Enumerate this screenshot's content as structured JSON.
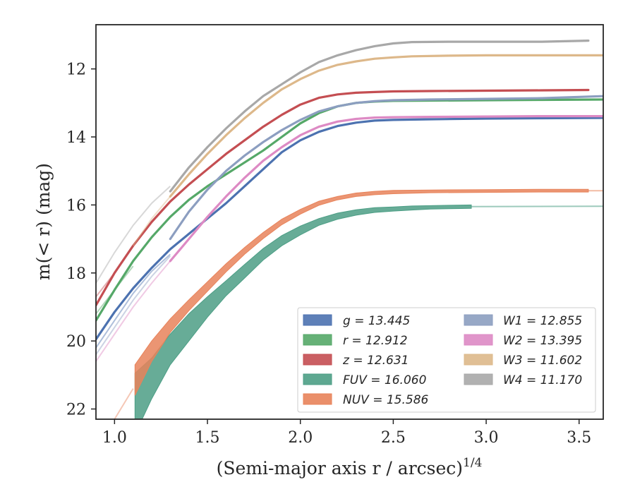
{
  "chart_data": {
    "type": "line",
    "xlabel": "(Semi-major axis r / arcsec)",
    "xlabel_exponent": "1/4",
    "ylabel": "m(< r) (mag)",
    "xlim": [
      0.9,
      3.63
    ],
    "ylim": [
      22.3,
      10.7
    ],
    "y_inverted": true,
    "xticks": [
      "1.0",
      "1.5",
      "2.0",
      "2.5",
      "3.0",
      "3.5"
    ],
    "yticks": [
      "12",
      "14",
      "16",
      "18",
      "20",
      "22"
    ],
    "grid": false,
    "legend_position": "lower-right",
    "series": [
      {
        "name": "g",
        "legend_label": "g = 13.445",
        "color": "#4c72b0",
        "faint_x": [
          0.9,
          1.0,
          1.1,
          1.2,
          1.3
        ],
        "faint_y": [
          20.2,
          19.4,
          18.6,
          17.95,
          17.45
        ],
        "x": [
          0.9,
          1.0,
          1.1,
          1.2,
          1.3,
          1.4,
          1.5,
          1.6,
          1.7,
          1.8,
          1.9,
          2.0,
          2.1,
          2.2,
          2.3,
          2.4,
          2.5,
          2.7,
          3.0,
          3.3,
          3.63
        ],
        "y": [
          19.95,
          19.15,
          18.45,
          17.85,
          17.3,
          16.85,
          16.4,
          15.95,
          15.45,
          14.95,
          14.45,
          14.1,
          13.85,
          13.68,
          13.58,
          13.52,
          13.5,
          13.48,
          13.46,
          13.45,
          13.44
        ]
      },
      {
        "name": "r",
        "legend_label": "r = 12.912",
        "color": "#55a868",
        "faint_x": [
          0.9,
          1.0,
          1.1
        ],
        "faint_y": [
          19.2,
          18.5,
          17.8
        ],
        "x": [
          0.9,
          1.0,
          1.1,
          1.2,
          1.3,
          1.4,
          1.5,
          1.6,
          1.7,
          1.8,
          1.9,
          2.0,
          2.1,
          2.2,
          2.3,
          2.4,
          2.5,
          2.7,
          3.0,
          3.3,
          3.63
        ],
        "y": [
          19.4,
          18.5,
          17.65,
          16.95,
          16.35,
          15.85,
          15.45,
          15.1,
          14.75,
          14.4,
          14.0,
          13.6,
          13.3,
          13.1,
          13.0,
          12.96,
          12.94,
          12.93,
          12.92,
          12.91,
          12.9
        ]
      },
      {
        "name": "z",
        "legend_label": "z = 12.631",
        "color": "#c44e52",
        "faint_x": [
          0.9,
          1.0
        ],
        "faint_y": [
          18.7,
          18.0
        ],
        "x": [
          0.9,
          1.0,
          1.1,
          1.2,
          1.3,
          1.4,
          1.5,
          1.6,
          1.7,
          1.8,
          1.9,
          2.0,
          2.1,
          2.2,
          2.3,
          2.4,
          2.5,
          2.7,
          3.0,
          3.3,
          3.55
        ],
        "y": [
          18.95,
          18.0,
          17.2,
          16.5,
          15.9,
          15.4,
          14.95,
          14.5,
          14.1,
          13.7,
          13.35,
          13.05,
          12.85,
          12.75,
          12.7,
          12.68,
          12.66,
          12.65,
          12.64,
          12.63,
          12.62
        ]
      },
      {
        "name": "FUV",
        "legend_label": "FUV = 16.060",
        "color": "#4c9e85",
        "faint_x": [
          1.05,
          1.11
        ],
        "faint_y": [
          23.0,
          22.3
        ],
        "x": [
          1.11,
          1.2,
          1.3,
          1.4,
          1.5,
          1.6,
          1.7,
          1.8,
          1.9,
          2.0,
          2.1,
          2.2,
          2.3,
          2.4,
          2.5,
          2.6,
          2.7,
          2.8,
          2.92
        ],
        "y": [
          21.85,
          21.1,
          20.25,
          19.6,
          19.0,
          18.45,
          17.95,
          17.45,
          17.05,
          16.75,
          16.5,
          16.33,
          16.22,
          16.15,
          16.12,
          16.09,
          16.07,
          16.06,
          16.05
        ],
        "band": [
          0.9,
          0.6,
          0.45,
          0.4,
          0.3,
          0.22,
          0.2,
          0.17,
          0.15,
          0.13,
          0.1,
          0.09,
          0.08,
          0.07,
          0.06,
          0.06,
          0.05,
          0.05,
          0.05
        ],
        "extension_x": [
          2.92,
          3.63
        ],
        "extension_y": [
          16.05,
          16.04
        ]
      },
      {
        "name": "NUV",
        "legend_label": "NUV = 15.586",
        "color": "#e8835a",
        "faint_x": [
          1.0,
          1.1
        ],
        "faint_y": [
          22.3,
          21.4
        ],
        "x": [
          1.11,
          1.2,
          1.3,
          1.4,
          1.5,
          1.6,
          1.7,
          1.8,
          1.9,
          2.0,
          2.1,
          2.2,
          2.3,
          2.4,
          2.5,
          2.7,
          3.0,
          3.3,
          3.55
        ],
        "y": [
          21.15,
          20.3,
          19.55,
          18.95,
          18.4,
          17.85,
          17.35,
          16.9,
          16.5,
          16.2,
          15.95,
          15.8,
          15.7,
          15.65,
          15.62,
          15.6,
          15.59,
          15.58,
          15.58
        ],
        "band": [
          0.45,
          0.3,
          0.2,
          0.16,
          0.14,
          0.12,
          0.1,
          0.09,
          0.08,
          0.07,
          0.06,
          0.05,
          0.05,
          0.05,
          0.05,
          0.04,
          0.04,
          0.04,
          0.04
        ],
        "extension_x": [
          3.55,
          3.63
        ],
        "extension_y": [
          15.58,
          15.58
        ]
      },
      {
        "name": "W1",
        "legend_label": "W1 = 12.855",
        "color": "#8c9ec0",
        "faint_x": [
          0.9,
          1.0,
          1.1,
          1.2,
          1.3
        ],
        "faint_y": [
          20.4,
          19.6,
          18.8,
          18.1,
          17.5
        ],
        "x": [
          1.3,
          1.4,
          1.5,
          1.6,
          1.7,
          1.8,
          1.9,
          2.0,
          2.1,
          2.2,
          2.3,
          2.4,
          2.5,
          2.7,
          3.0,
          3.3,
          3.63
        ],
        "y": [
          17.0,
          16.2,
          15.55,
          15.0,
          14.55,
          14.15,
          13.8,
          13.5,
          13.25,
          13.1,
          13.0,
          12.95,
          12.92,
          12.9,
          12.88,
          12.86,
          12.8
        ]
      },
      {
        "name": "W2",
        "legend_label": "W2 = 13.395",
        "color": "#dd8ac4",
        "faint_x": [
          0.9,
          1.0,
          1.1,
          1.2,
          1.3
        ],
        "faint_y": [
          20.6,
          19.8,
          19.0,
          18.3,
          17.65
        ],
        "x": [
          1.3,
          1.4,
          1.5,
          1.6,
          1.7,
          1.8,
          1.9,
          2.0,
          2.1,
          2.2,
          2.3,
          2.4,
          2.5,
          2.7,
          3.0,
          3.3,
          3.63
        ],
        "y": [
          17.65,
          17.0,
          16.35,
          15.75,
          15.2,
          14.7,
          14.3,
          13.95,
          13.7,
          13.55,
          13.47,
          13.43,
          13.42,
          13.41,
          13.4,
          13.39,
          13.39
        ]
      },
      {
        "name": "W3",
        "legend_label": "W3 = 11.602",
        "color": "#ddb88a",
        "faint_x": [
          1.1,
          1.2,
          1.3
        ],
        "faint_y": [
          17.2,
          16.4,
          15.75
        ],
        "x": [
          1.3,
          1.4,
          1.5,
          1.6,
          1.7,
          1.8,
          1.9,
          2.0,
          2.1,
          2.2,
          2.3,
          2.4,
          2.5,
          2.6,
          2.8,
          3.0,
          3.3,
          3.63
        ],
        "y": [
          15.75,
          15.1,
          14.5,
          13.95,
          13.45,
          13.0,
          12.6,
          12.3,
          12.05,
          11.88,
          11.78,
          11.7,
          11.66,
          11.63,
          11.61,
          11.6,
          11.6,
          11.6
        ]
      },
      {
        "name": "W4",
        "legend_label": "W4 = 11.170",
        "color": "#a8a8a8",
        "faint_x": [
          0.9,
          1.0,
          1.1,
          1.2,
          1.3
        ],
        "faint_y": [
          18.3,
          17.4,
          16.6,
          15.95,
          15.45
        ],
        "x": [
          1.3,
          1.4,
          1.5,
          1.6,
          1.7,
          1.8,
          1.9,
          2.0,
          2.1,
          2.2,
          2.3,
          2.4,
          2.5,
          2.6,
          2.8,
          3.0,
          3.3,
          3.55
        ],
        "y": [
          15.6,
          14.9,
          14.3,
          13.75,
          13.25,
          12.8,
          12.45,
          12.1,
          11.8,
          11.6,
          11.45,
          11.33,
          11.25,
          11.21,
          11.2,
          11.2,
          11.2,
          11.17
        ]
      }
    ]
  }
}
